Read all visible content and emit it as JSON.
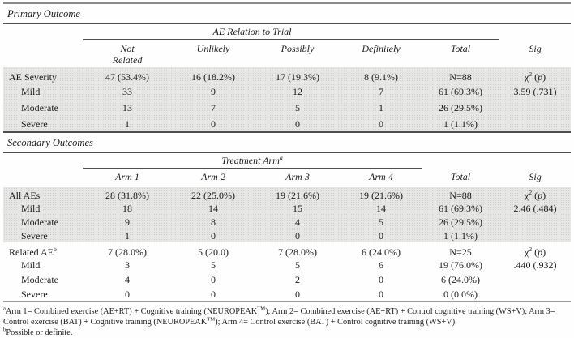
{
  "table": {
    "primary": {
      "title": "Primary Outcome",
      "spanner": "AE Relation to Trial",
      "headers": [
        "Not Related",
        "Unlikely",
        "Possibly",
        "Definitely",
        "Total",
        "Sig"
      ],
      "rows": [
        {
          "label": "AE Severity",
          "indent": false,
          "shaded": true,
          "cells": [
            "47 (53.4%)",
            "16 (18.2%)",
            "17 (19.3%)",
            "8 (9.1%)",
            "N=88",
            "χ<sup>2</sup> (<i>p</i>)"
          ]
        },
        {
          "label": "Mild",
          "indent": true,
          "shaded": true,
          "cells": [
            "33",
            "9",
            "12",
            "7",
            "61 (69.3%)",
            "3.59 (.731)"
          ]
        },
        {
          "label": "Moderate",
          "indent": true,
          "shaded": true,
          "cells": [
            "13",
            "7",
            "5",
            "1",
            "26 (29.5%)",
            ""
          ]
        },
        {
          "label": "Severe",
          "indent": true,
          "shaded": true,
          "cells": [
            "1",
            "0",
            "0",
            "0",
            "1 (1.1%)",
            ""
          ]
        }
      ]
    },
    "secondary": {
      "title": "Secondary Outcomes",
      "spanner_html": "Treatment Arm<sup>a</sup>",
      "headers": [
        "Arm 1",
        "Arm 2",
        "Arm 3",
        "Arm 4",
        "Total",
        "Sig"
      ],
      "all_aes_rows": [
        {
          "label": "All AEs",
          "indent": false,
          "shaded": true,
          "cells": [
            "28 (31.8%)",
            "22 (25.0%)",
            "19 (21.6%)",
            "19 (21.6%)",
            "N=88",
            "χ<sup>2</sup> (<i>p</i>)"
          ]
        },
        {
          "label": "Mild",
          "indent": true,
          "shaded": true,
          "cells": [
            "18",
            "14",
            "15",
            "14",
            "61 (69.3%)",
            "2.46 (.484)"
          ]
        },
        {
          "label": "Moderate",
          "indent": true,
          "shaded": true,
          "cells": [
            "9",
            "8",
            "4",
            "5",
            "26 (29.5%)",
            ""
          ]
        },
        {
          "label": "Severe",
          "indent": true,
          "shaded": true,
          "cells": [
            "1",
            "0",
            "0",
            "0",
            "1 (1.1%)",
            ""
          ]
        }
      ],
      "related_rows": [
        {
          "label": "Related AE<sup>b</sup>",
          "indent": false,
          "shaded": false,
          "cells": [
            "7 (28.0%)",
            "5 (20.0)",
            "7 (28.0%)",
            "6 (24.0%)",
            "N=25",
            "χ<sup>2</sup> (<i>p</i>)"
          ]
        },
        {
          "label": "Mild",
          "indent": true,
          "shaded": false,
          "cells": [
            "3",
            "5",
            "5",
            "6",
            "19 (76.0%)",
            ".440 (.932)"
          ]
        },
        {
          "label": "Moderate",
          "indent": true,
          "shaded": false,
          "cells": [
            "4",
            "0",
            "2",
            "0",
            "6 (24.0%)",
            ""
          ]
        },
        {
          "label": "Severe",
          "indent": true,
          "shaded": false,
          "cells": [
            "0",
            "0",
            "0",
            "0",
            "0 (0.0%)",
            ""
          ]
        }
      ]
    }
  },
  "footnotes": {
    "a_html": "<sup>a</sup>Arm 1= Combined exercise (AE+RT) + Cognitive training (NEUROPEAK<sup>TM</sup>); Arm 2= Combined exercise (AE+RT) + Control cognitive training (WS+V); Arm 3= Control exercise (BAT) + Cognitive training (NEUROPEAK<sup>TM</sup>); Arm 4= Control exercise (BAT) + Control cognitive training (WS+V).",
    "b_html": "<sup>b</sup>Possible or definite."
  },
  "colors": {
    "band_gray": "#e6e6e4",
    "rule_dark": "#4d4d4d",
    "rule_gray": "#8a8a8a",
    "text": "#1b1b1b"
  }
}
